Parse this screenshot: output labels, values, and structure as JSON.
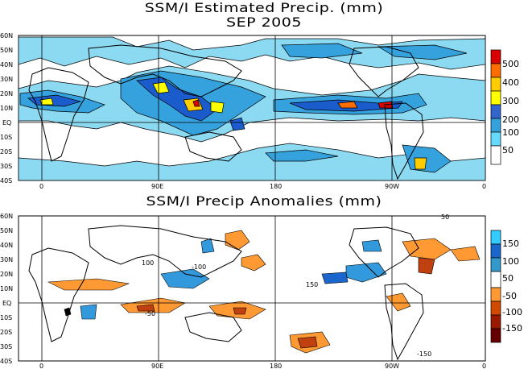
{
  "top_panel": {
    "title_line1": "SSM/I Estimated Precip. (mm)",
    "title_line2": "SEP 2005",
    "lat_labels": [
      "60N",
      "50N",
      "40N",
      "30N",
      "20N",
      "10N",
      "EQ",
      "10S",
      "20S",
      "30S",
      "40S"
    ],
    "lon_labels": [
      "0",
      "90E",
      "180",
      "90W",
      "0"
    ],
    "colorbar_labels": [
      "500",
      "400",
      "300",
      "200",
      "100",
      "50"
    ],
    "colorbar_colors": [
      "#d90000",
      "#ff6c00",
      "#ffcc00",
      "#ffff00",
      "#3366cc",
      "#36a2dd",
      "#66d9ff",
      "#ffffff"
    ]
  },
  "bottom_panel": {
    "title": "SSM/I Precip Anomalies (mm)",
    "lat_labels": [
      "60N",
      "50N",
      "40N",
      "30N",
      "20N",
      "10N",
      "EQ",
      "10S",
      "20S",
      "30S",
      "40S"
    ],
    "lon_labels": [
      "0",
      "90E",
      "180",
      "90W",
      "0"
    ],
    "colorbar_labels": [
      "150",
      "100",
      "50",
      "-50",
      "-100",
      "-150"
    ],
    "colorbar_colors": [
      "#33ccff",
      "#1a66cc",
      "#3399cc",
      "#ffffff",
      "#ff9933",
      "#d24a00",
      "#991a00",
      "#660000"
    ],
    "contour_labels": [
      "50",
      "100",
      "150",
      "-50",
      "-100",
      "-150"
    ]
  },
  "colors": {
    "ocean_light": "#8cd9f2",
    "ocean_mid": "#36a2dd",
    "heavy_blue": "#1a5ccc",
    "yellow": "#ffff00",
    "orange": "#ff9900",
    "red": "#d90000",
    "anom_orange": "#ff9933",
    "anom_red": "#c0400f",
    "anom_blue": "#3399dd"
  }
}
